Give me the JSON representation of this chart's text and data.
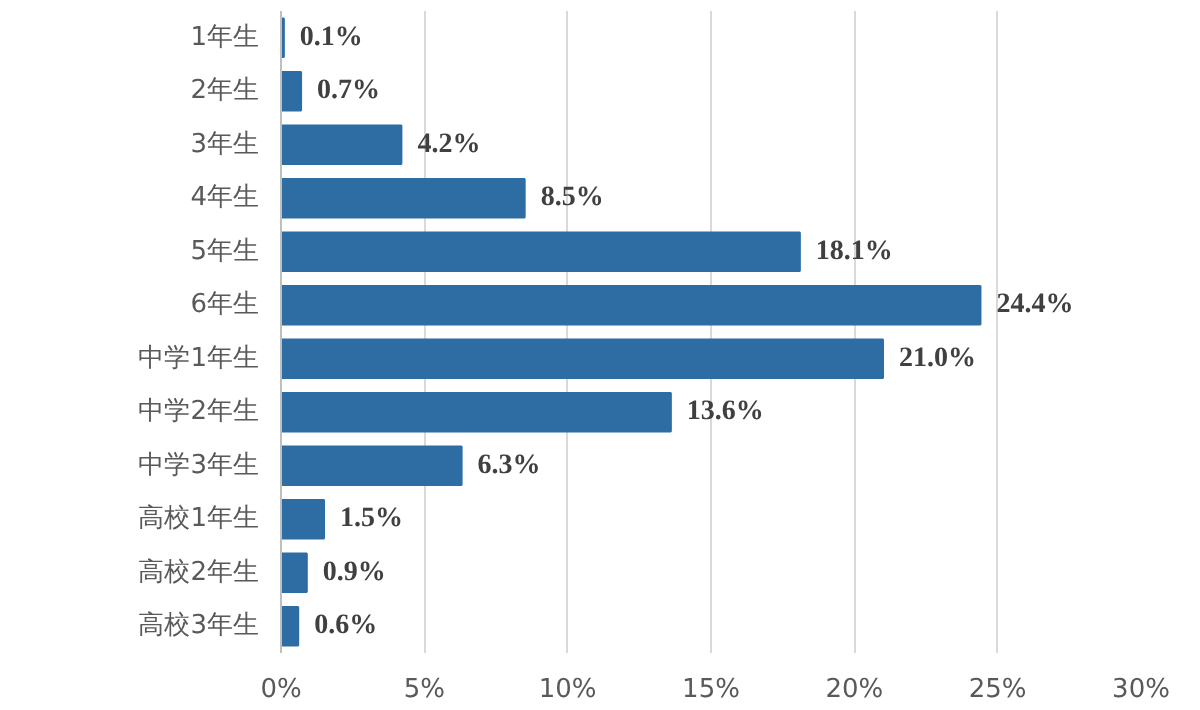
{
  "chart_data": {
    "type": "bar",
    "orientation": "horizontal",
    "categories": [
      "1年生",
      "2年生",
      "3年生",
      "4年生",
      "5年生",
      "6年生",
      "中学1年生",
      "中学2年生",
      "中学3年生",
      "高校1年生",
      "高校2年生",
      "高校3年生"
    ],
    "values": [
      0.1,
      0.7,
      4.2,
      8.5,
      18.1,
      24.4,
      21.0,
      13.6,
      6.3,
      1.5,
      0.9,
      0.6
    ],
    "value_labels": [
      "0.1%",
      "0.7%",
      "4.2%",
      "8.5%",
      "18.1%",
      "24.4%",
      "21.0%",
      "13.6%",
      "6.3%",
      "1.5%",
      "0.9%",
      "0.6%"
    ],
    "color": "#2e6da4",
    "xlim": [
      0,
      30
    ],
    "xticks": [
      {
        "value": 0,
        "label": "0%"
      },
      {
        "value": 5,
        "label": "5%"
      },
      {
        "value": 10,
        "label": "10%"
      },
      {
        "value": 15,
        "label": "15%"
      },
      {
        "value": 20,
        "label": "20%"
      },
      {
        "value": 25,
        "label": "25%"
      },
      {
        "value": 30,
        "label": "30%"
      }
    ],
    "grid": "x"
  }
}
